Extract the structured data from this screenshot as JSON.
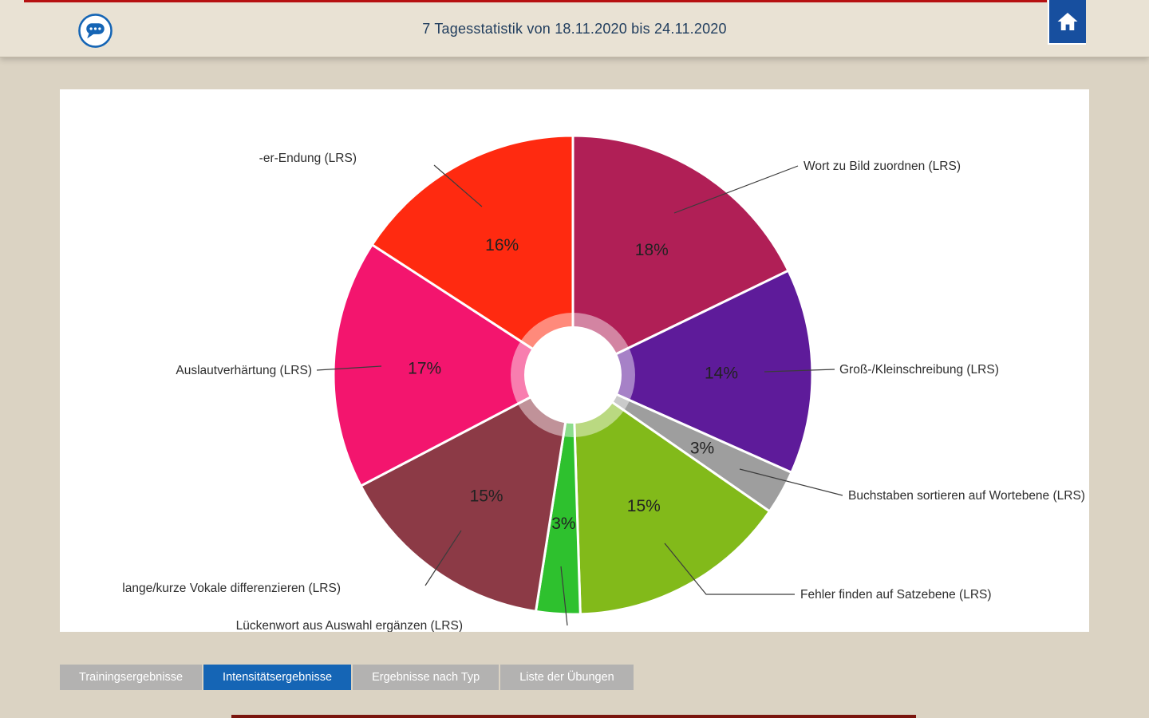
{
  "header": {
    "title": "7 Tagesstatistik von 18.11.2020 bis 24.11.2020",
    "left_icon": "chat-bubble-icon",
    "right_icon": "home-icon"
  },
  "colors": {
    "accent_blue": "#1565b5",
    "home_button_blue": "#174f9f",
    "header_bg": "#e9e2d4",
    "page_bg": "#dbd3c3",
    "panel_bg": "#ffffff",
    "tab_inactive": "#b3b2b1",
    "tab_active": "#1565b5",
    "top_accent_line": "#b61111",
    "bottom_accent_line": "#7a150e"
  },
  "chart_data": {
    "type": "pie",
    "donut": true,
    "title": "",
    "unit": "%",
    "legend_position": "outside-labels",
    "categories": [
      "Wort zu Bild zuordnen (LRS)",
      "Groß-/Kleinschreibung (LRS)",
      "Buchstaben sortieren auf Wortebene (LRS)",
      "Fehler finden auf Satzebene (LRS)",
      "Lückenwort aus Auswahl ergänzen (LRS)",
      "lange/kurze Vokale differenzieren (LRS)",
      "Auslautverhärtung (LRS)",
      "-er-Endung (LRS)"
    ],
    "values": [
      18,
      14,
      3,
      15,
      3,
      15,
      17,
      16
    ],
    "colors": [
      "#b01f56",
      "#5e1b9a",
      "#9e9e9e",
      "#82ba1a",
      "#2ec12e",
      "#8c3a46",
      "#f3156e",
      "#ff2a10"
    ]
  },
  "tabs": [
    {
      "name": "tab-trainingsergebnisse",
      "label": "Trainingsergebnisse",
      "active": false
    },
    {
      "name": "tab-intensitaetsergebnisse",
      "label": "Intensitätsergebnisse",
      "active": true
    },
    {
      "name": "tab-ergebnisse-nach-typ",
      "label": "Ergebnisse nach Typ",
      "active": false
    },
    {
      "name": "tab-liste-der-uebungen",
      "label": "Liste der Übungen",
      "active": false
    }
  ]
}
